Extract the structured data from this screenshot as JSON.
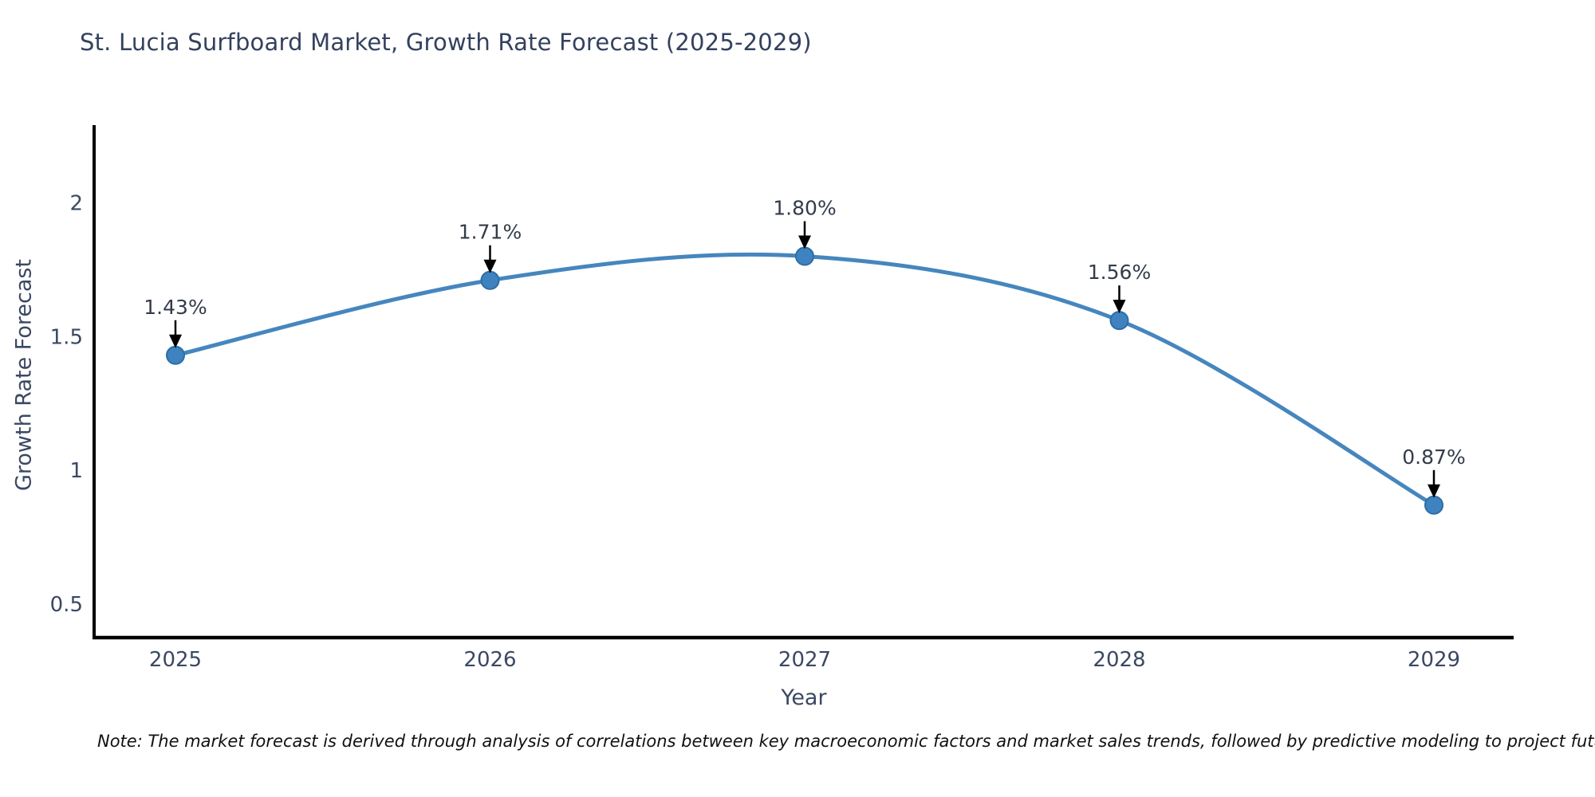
{
  "title": "St. Lucia Surfboard Market, Growth Rate Forecast (2025-2029)",
  "note": "Note: The market forecast is derived through analysis of correlations between key macroeconomic factors and market sales trends, followed by predictive modeling to project future sales",
  "chart_data": {
    "type": "line",
    "title": "St. Lucia Surfboard Market, Growth Rate Forecast (2025-2029)",
    "xlabel": "Year",
    "ylabel": "Growth Rate Forecast",
    "categories": [
      "2025",
      "2026",
      "2027",
      "2028",
      "2029"
    ],
    "values": [
      1.43,
      1.71,
      1.8,
      1.56,
      0.87
    ],
    "point_labels": [
      "1.43%",
      "1.71%",
      "1.80%",
      "1.56%",
      "0.87%"
    ],
    "y_ticks": [
      2,
      1.5,
      1,
      0.5
    ],
    "ylim": [
      0.375,
      2.29
    ],
    "grid": false,
    "legend_position": "none",
    "line_color": "#4686be",
    "marker_color": "#3e83c0",
    "marker_edge_color": "#2e6da4",
    "axis_color": "#000000",
    "arrow_color": "#000000",
    "tick_label_color": "#3b4863",
    "annotation_text_color": "#333c4a"
  }
}
